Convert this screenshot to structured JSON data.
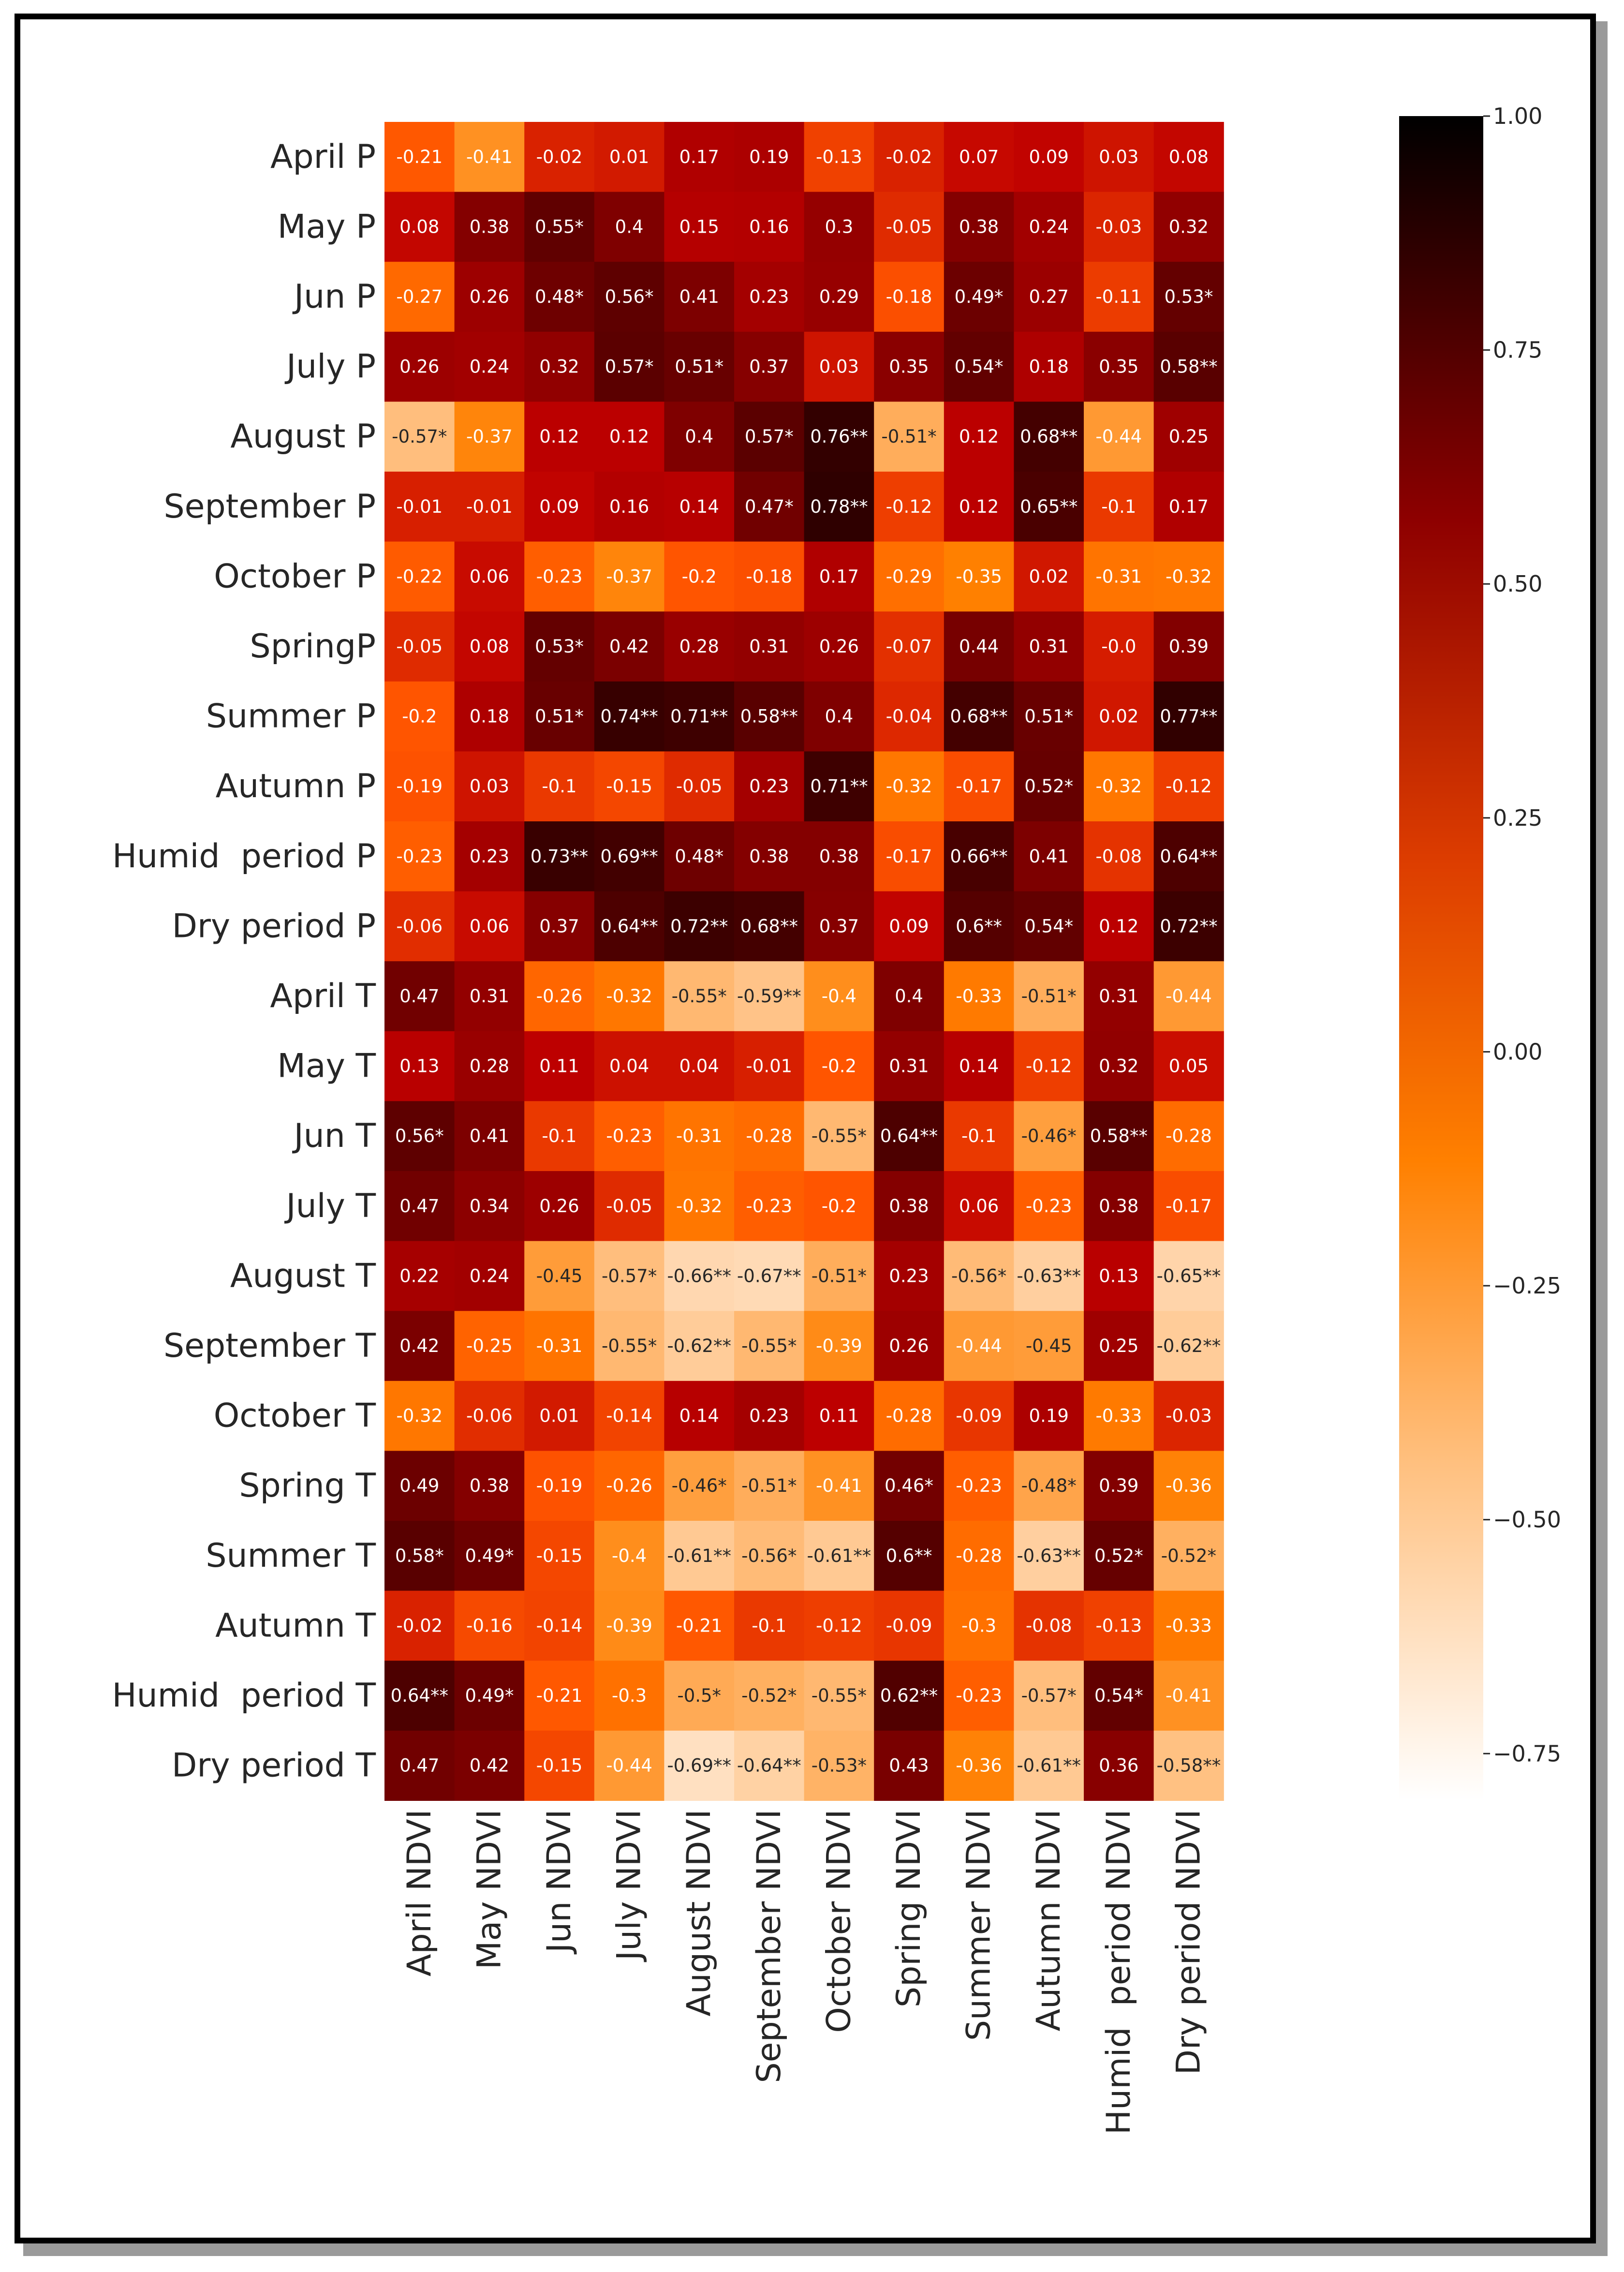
{
  "chart_data": {
    "type": "heatmap",
    "rows": [
      "April P",
      "May P",
      "Jun P",
      "July P",
      "August P",
      "September P",
      "October P",
      "SpringP",
      "Summer P",
      "Autumn P",
      "Humid  period P",
      "Dry period P",
      "April T",
      "May T",
      "Jun T",
      "July T",
      "August T",
      "September T",
      "October T",
      "Spring T",
      "Summer T",
      "Autumn T",
      "Humid  period T",
      "Dry period T"
    ],
    "columns": [
      "April NDVI",
      "May NDVI",
      "Jun NDVI",
      "July NDVI",
      "August NDVI",
      "September NDVI",
      "October NDVI",
      "Spring NDVI",
      "Summer NDVI",
      "Autumn NDVI",
      "Humid  period NDVI",
      "Dry period NDVI"
    ],
    "values": [
      [
        -0.21,
        -0.41,
        -0.02,
        0.01,
        0.17,
        0.19,
        -0.13,
        -0.02,
        0.07,
        0.09,
        0.03,
        0.08
      ],
      [
        0.08,
        0.38,
        0.55,
        0.4,
        0.15,
        0.16,
        0.3,
        -0.05,
        0.38,
        0.24,
        -0.03,
        0.32
      ],
      [
        -0.27,
        0.26,
        0.48,
        0.56,
        0.41,
        0.23,
        0.29,
        -0.18,
        0.49,
        0.27,
        -0.11,
        0.53
      ],
      [
        0.26,
        0.24,
        0.32,
        0.57,
        0.51,
        0.37,
        0.03,
        0.35,
        0.54,
        0.18,
        0.35,
        0.58
      ],
      [
        -0.57,
        -0.37,
        0.12,
        0.12,
        0.4,
        0.57,
        0.76,
        -0.51,
        0.12,
        0.68,
        -0.44,
        0.25
      ],
      [
        -0.01,
        -0.01,
        0.09,
        0.16,
        0.14,
        0.47,
        0.78,
        -0.12,
        0.12,
        0.65,
        -0.1,
        0.17
      ],
      [
        -0.22,
        0.06,
        -0.23,
        -0.37,
        -0.2,
        -0.18,
        0.17,
        -0.29,
        -0.35,
        0.02,
        -0.31,
        -0.32
      ],
      [
        -0.05,
        0.08,
        0.53,
        0.42,
        0.28,
        0.31,
        0.26,
        -0.07,
        0.44,
        0.31,
        0.0,
        0.39
      ],
      [
        -0.2,
        0.18,
        0.51,
        0.74,
        0.71,
        0.58,
        0.4,
        -0.04,
        0.68,
        0.51,
        0.02,
        0.77
      ],
      [
        -0.19,
        0.03,
        -0.1,
        -0.15,
        -0.05,
        0.23,
        0.71,
        -0.32,
        -0.17,
        0.52,
        -0.32,
        -0.12
      ],
      [
        -0.23,
        0.23,
        0.73,
        0.69,
        0.48,
        0.38,
        0.38,
        -0.17,
        0.66,
        0.41,
        -0.08,
        0.64
      ],
      [
        -0.06,
        0.06,
        0.37,
        0.64,
        0.72,
        0.68,
        0.37,
        0.09,
        0.6,
        0.54,
        0.12,
        0.72
      ],
      [
        0.47,
        0.31,
        -0.26,
        -0.32,
        -0.55,
        -0.59,
        -0.4,
        0.4,
        -0.33,
        -0.51,
        0.31,
        -0.44
      ],
      [
        0.13,
        0.28,
        0.11,
        0.04,
        0.04,
        -0.01,
        -0.2,
        0.31,
        0.14,
        -0.12,
        0.32,
        0.05
      ],
      [
        0.56,
        0.41,
        -0.1,
        -0.23,
        -0.31,
        -0.28,
        -0.55,
        0.64,
        -0.1,
        -0.46,
        0.58,
        -0.28
      ],
      [
        0.47,
        0.34,
        0.26,
        -0.05,
        -0.32,
        -0.23,
        -0.2,
        0.38,
        0.06,
        -0.23,
        0.38,
        -0.17
      ],
      [
        0.22,
        0.24,
        -0.45,
        -0.57,
        -0.66,
        -0.67,
        -0.51,
        0.23,
        -0.56,
        -0.63,
        0.13,
        -0.65
      ],
      [
        0.42,
        -0.25,
        -0.31,
        -0.55,
        -0.62,
        -0.55,
        -0.39,
        0.26,
        -0.44,
        -0.45,
        0.25,
        -0.62
      ],
      [
        -0.32,
        -0.06,
        0.01,
        -0.14,
        0.14,
        0.23,
        0.11,
        -0.28,
        -0.09,
        0.19,
        -0.33,
        -0.03
      ],
      [
        0.49,
        0.38,
        -0.19,
        -0.26,
        -0.46,
        -0.51,
        -0.41,
        0.46,
        -0.23,
        -0.48,
        0.39,
        -0.36
      ],
      [
        0.58,
        0.49,
        -0.15,
        -0.4,
        -0.61,
        -0.56,
        -0.61,
        0.6,
        -0.28,
        -0.63,
        0.52,
        -0.52
      ],
      [
        -0.02,
        -0.16,
        -0.14,
        -0.39,
        -0.21,
        -0.1,
        -0.12,
        -0.09,
        -0.3,
        -0.08,
        -0.13,
        -0.33
      ],
      [
        0.64,
        0.49,
        -0.21,
        -0.3,
        -0.5,
        -0.52,
        -0.55,
        0.62,
        -0.23,
        -0.57,
        0.54,
        -0.41
      ],
      [
        0.47,
        0.42,
        -0.15,
        -0.44,
        -0.69,
        -0.64,
        -0.53,
        0.43,
        -0.36,
        -0.61,
        0.36,
        -0.58
      ]
    ],
    "annotations": [
      [
        "-0.21",
        "-0.41",
        "-0.02",
        "0.01",
        "0.17",
        "0.19",
        "-0.13",
        "-0.02",
        "0.07",
        "0.09",
        "0.03",
        "0.08"
      ],
      [
        "0.08",
        "0.38",
        "0.55*",
        "0.4",
        "0.15",
        "0.16",
        "0.3",
        "-0.05",
        "0.38",
        "0.24",
        "-0.03",
        "0.32"
      ],
      [
        "-0.27",
        "0.26",
        "0.48*",
        "0.56*",
        "0.41",
        "0.23",
        "0.29",
        "-0.18",
        "0.49*",
        "0.27",
        "-0.11",
        "0.53*"
      ],
      [
        "0.26",
        "0.24",
        "0.32",
        "0.57*",
        "0.51*",
        "0.37",
        "0.03",
        "0.35",
        "0.54*",
        "0.18",
        "0.35",
        "0.58**"
      ],
      [
        "-0.57*",
        "-0.37",
        "0.12",
        "0.12",
        "0.4",
        "0.57*",
        "0.76**",
        "-0.51*",
        "0.12",
        "0.68**",
        "-0.44",
        "0.25"
      ],
      [
        "-0.01",
        "-0.01",
        "0.09",
        "0.16",
        "0.14",
        "0.47*",
        "0.78**",
        "-0.12",
        "0.12",
        "0.65**",
        "-0.1",
        "0.17"
      ],
      [
        "-0.22",
        "0.06",
        "-0.23",
        "-0.37",
        "-0.2",
        "-0.18",
        "0.17",
        "-0.29",
        "-0.35",
        "0.02",
        "-0.31",
        "-0.32"
      ],
      [
        "-0.05",
        "0.08",
        "0.53*",
        "0.42",
        "0.28",
        "0.31",
        "0.26",
        "-0.07",
        "0.44",
        "0.31",
        "-0.0",
        "0.39"
      ],
      [
        "-0.2",
        "0.18",
        "0.51*",
        "0.74**",
        "0.71**",
        "0.58**",
        "0.4",
        "-0.04",
        "0.68**",
        "0.51*",
        "0.02",
        "0.77**"
      ],
      [
        "-0.19",
        "0.03",
        "-0.1",
        "-0.15",
        "-0.05",
        "0.23",
        "0.71**",
        "-0.32",
        "-0.17",
        "0.52*",
        "-0.32",
        "-0.12"
      ],
      [
        "-0.23",
        "0.23",
        "0.73**",
        "0.69**",
        "0.48*",
        "0.38",
        "0.38",
        "-0.17",
        "0.66**",
        "0.41",
        "-0.08",
        "0.64**"
      ],
      [
        "-0.06",
        "0.06",
        "0.37",
        "0.64**",
        "0.72**",
        "0.68**",
        "0.37",
        "0.09",
        "0.6**",
        "0.54*",
        "0.12",
        "0.72**"
      ],
      [
        "0.47",
        "0.31",
        "-0.26",
        "-0.32",
        "-0.55*",
        "-0.59**",
        "-0.4",
        "0.4",
        "-0.33",
        "-0.51*",
        "0.31",
        "-0.44"
      ],
      [
        "0.13",
        "0.28",
        "0.11",
        "0.04",
        "0.04",
        "-0.01",
        "-0.2",
        "0.31",
        "0.14",
        "-0.12",
        "0.32",
        "0.05"
      ],
      [
        "0.56*",
        "0.41",
        "-0.1",
        "-0.23",
        "-0.31",
        "-0.28",
        "-0.55*",
        "0.64**",
        "-0.1",
        "-0.46*",
        "0.58**",
        "-0.28"
      ],
      [
        "0.47",
        "0.34",
        "0.26",
        "-0.05",
        "-0.32",
        "-0.23",
        "-0.2",
        "0.38",
        "0.06",
        "-0.23",
        "0.38",
        "-0.17"
      ],
      [
        "0.22",
        "0.24",
        "-0.45",
        "-0.57*",
        "-0.66**",
        "-0.67**",
        "-0.51*",
        "0.23",
        "-0.56*",
        "-0.63**",
        "0.13",
        "-0.65**"
      ],
      [
        "0.42",
        "-0.25",
        "-0.31",
        "-0.55*",
        "-0.62**",
        "-0.55*",
        "-0.39",
        "0.26",
        "-0.44",
        "-0.45",
        "0.25",
        "-0.62**"
      ],
      [
        "-0.32",
        "-0.06",
        "0.01",
        "-0.14",
        "0.14",
        "0.23",
        "0.11",
        "-0.28",
        "-0.09",
        "0.19",
        "-0.33",
        "-0.03"
      ],
      [
        "0.49",
        "0.38",
        "-0.19",
        "-0.26",
        "-0.46*",
        "-0.51*",
        "-0.41",
        "0.46*",
        "-0.23",
        "-0.48*",
        "0.39",
        "-0.36"
      ],
      [
        "0.58*",
        "0.49*",
        "-0.15",
        "-0.4",
        "-0.61**",
        "-0.56*",
        "-0.61**",
        "0.6**",
        "-0.28",
        "-0.63**",
        "0.52*",
        "-0.52*"
      ],
      [
        "-0.02",
        "-0.16",
        "-0.14",
        "-0.39",
        "-0.21",
        "-0.1",
        "-0.12",
        "-0.09",
        "-0.3",
        "-0.08",
        "-0.13",
        "-0.33"
      ],
      [
        "0.64**",
        "0.49*",
        "-0.21",
        "-0.3",
        "-0.5*",
        "-0.52*",
        "-0.55*",
        "0.62**",
        "-0.23",
        "-0.57*",
        "0.54*",
        "-0.41"
      ],
      [
        "0.47",
        "0.42",
        "-0.15",
        "-0.44",
        "-0.69**",
        "-0.64**",
        "-0.53*",
        "0.43",
        "-0.36",
        "-0.61**",
        "0.36",
        "-0.58**"
      ]
    ],
    "colormap": "gist_heat_r",
    "vmin": -0.8,
    "vmax": 1.0,
    "colorbar": {
      "ticks": [
        1.0,
        0.75,
        0.5,
        0.25,
        0.0,
        -0.25,
        -0.5,
        -0.75
      ],
      "tick_labels": [
        "1.00",
        "0.75",
        "0.50",
        "0.25",
        "0.00",
        "−0.25",
        "−0.50",
        "−0.75"
      ],
      "placement": "right"
    },
    "colors": {
      "frame": "#000000",
      "background": "#ffffff",
      "text_light": "#ffffff",
      "text_dark": "#262626"
    }
  }
}
